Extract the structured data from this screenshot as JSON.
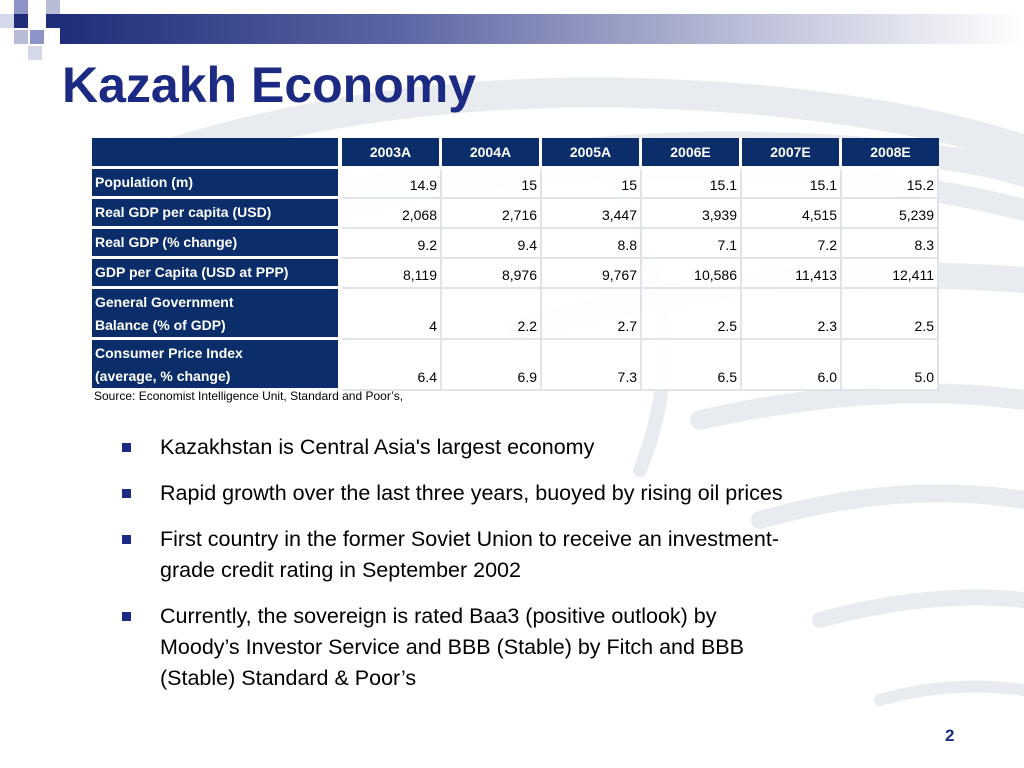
{
  "slide": {
    "title": "Kazakh Economy",
    "page_number": "2",
    "accent_color": "#1c2a84",
    "table_header_color": "#0b2e6b"
  },
  "table": {
    "columns": [
      "2003A",
      "2004A",
      "2005A",
      "2006E",
      "2007E",
      "2008E"
    ],
    "rows": [
      {
        "label": [
          "Population (m)"
        ],
        "values": [
          "14.9",
          "15",
          "15",
          "15.1",
          "15.1",
          "15.2"
        ]
      },
      {
        "label": [
          "Real GDP per capita (USD)"
        ],
        "values": [
          "2,068",
          "2,716",
          "3,447",
          "3,939",
          "4,515",
          "5,239"
        ]
      },
      {
        "label": [
          "Real GDP (% change)"
        ],
        "values": [
          "9.2",
          "9.4",
          "8.8",
          "7.1",
          "7.2",
          "8.3"
        ]
      },
      {
        "label": [
          "GDP per Capita (USD at PPP)"
        ],
        "values": [
          "8,119",
          "8,976",
          "9,767",
          "10,586",
          "11,413",
          "12,411"
        ]
      },
      {
        "label": [
          "General Government",
          "Balance (% of GDP)"
        ],
        "values": [
          "4",
          "2.2",
          "2.7",
          "2.5",
          "2.3",
          "2.5"
        ]
      },
      {
        "label": [
          "Consumer Price Index",
          "(average, % change)"
        ],
        "values": [
          "6.4",
          "6.9",
          "7.3",
          "6.5",
          "6.0",
          "5.0"
        ]
      }
    ],
    "source": "Source: Economist Intelligence Unit, Standard and Poor’s,"
  },
  "bullets": [
    [
      "Kazakhstan is Central Asia's largest economy"
    ],
    [
      "Rapid growth over the last three years, buoyed by rising oil prices"
    ],
    [
      "First country in the former Soviet Union to receive an investment-",
      "grade credit rating in September 2002"
    ],
    [
      "Currently, the sovereign is rated Baa3 (positive outlook) by",
      "Moody’s Investor Service and BBB (Stable) by Fitch and BBB",
      "(Stable) Standard & Poor’s"
    ]
  ]
}
